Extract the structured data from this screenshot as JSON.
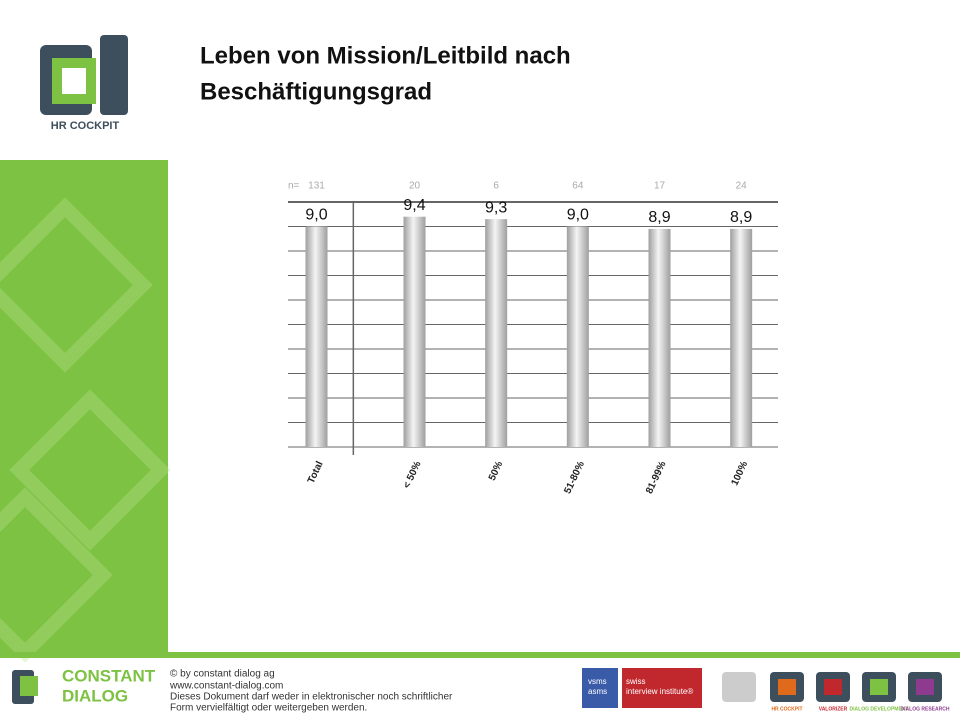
{
  "title_lines": [
    "Leben von Mission/Leitbild nach",
    "Beschäftigungsgrad"
  ],
  "logo": "HR COCKPIT",
  "chart_data": {
    "type": "bar",
    "categories": [
      "Total",
      "< 50%",
      "50%",
      "51-80%",
      "81-99%",
      "100%"
    ],
    "values": [
      9.0,
      9.4,
      9.3,
      9.0,
      8.9,
      8.9
    ],
    "value_labels": [
      "9,0",
      "9,4",
      "9,3",
      "9,0",
      "8,9",
      "8,9"
    ],
    "n_label": "n=",
    "n": [
      131,
      20,
      6,
      64,
      17,
      24
    ],
    "color": "#9e9e9e",
    "ylim": [
      0,
      10
    ],
    "yticks": [
      0,
      1,
      2,
      3,
      4,
      5,
      6,
      7,
      8,
      9,
      10
    ],
    "grid": true
  },
  "footer": {
    "brand": [
      "CONSTANT",
      "DIALOG"
    ],
    "lines": [
      "© by constant dialog ag",
      "www.constant-dialog.com",
      "Dieses Dokument darf weder in elektronischer noch schriftlicher",
      "Form vervielfältigt oder weitergeben werden."
    ],
    "vsms": [
      "vsms",
      "asms"
    ],
    "sii": [
      "swiss",
      "interview institute®"
    ],
    "products": [
      "HR COCKPIT",
      "VALORIZER",
      "DIALOG DEVELOPMENT",
      "DIALOG RESEARCH"
    ]
  }
}
